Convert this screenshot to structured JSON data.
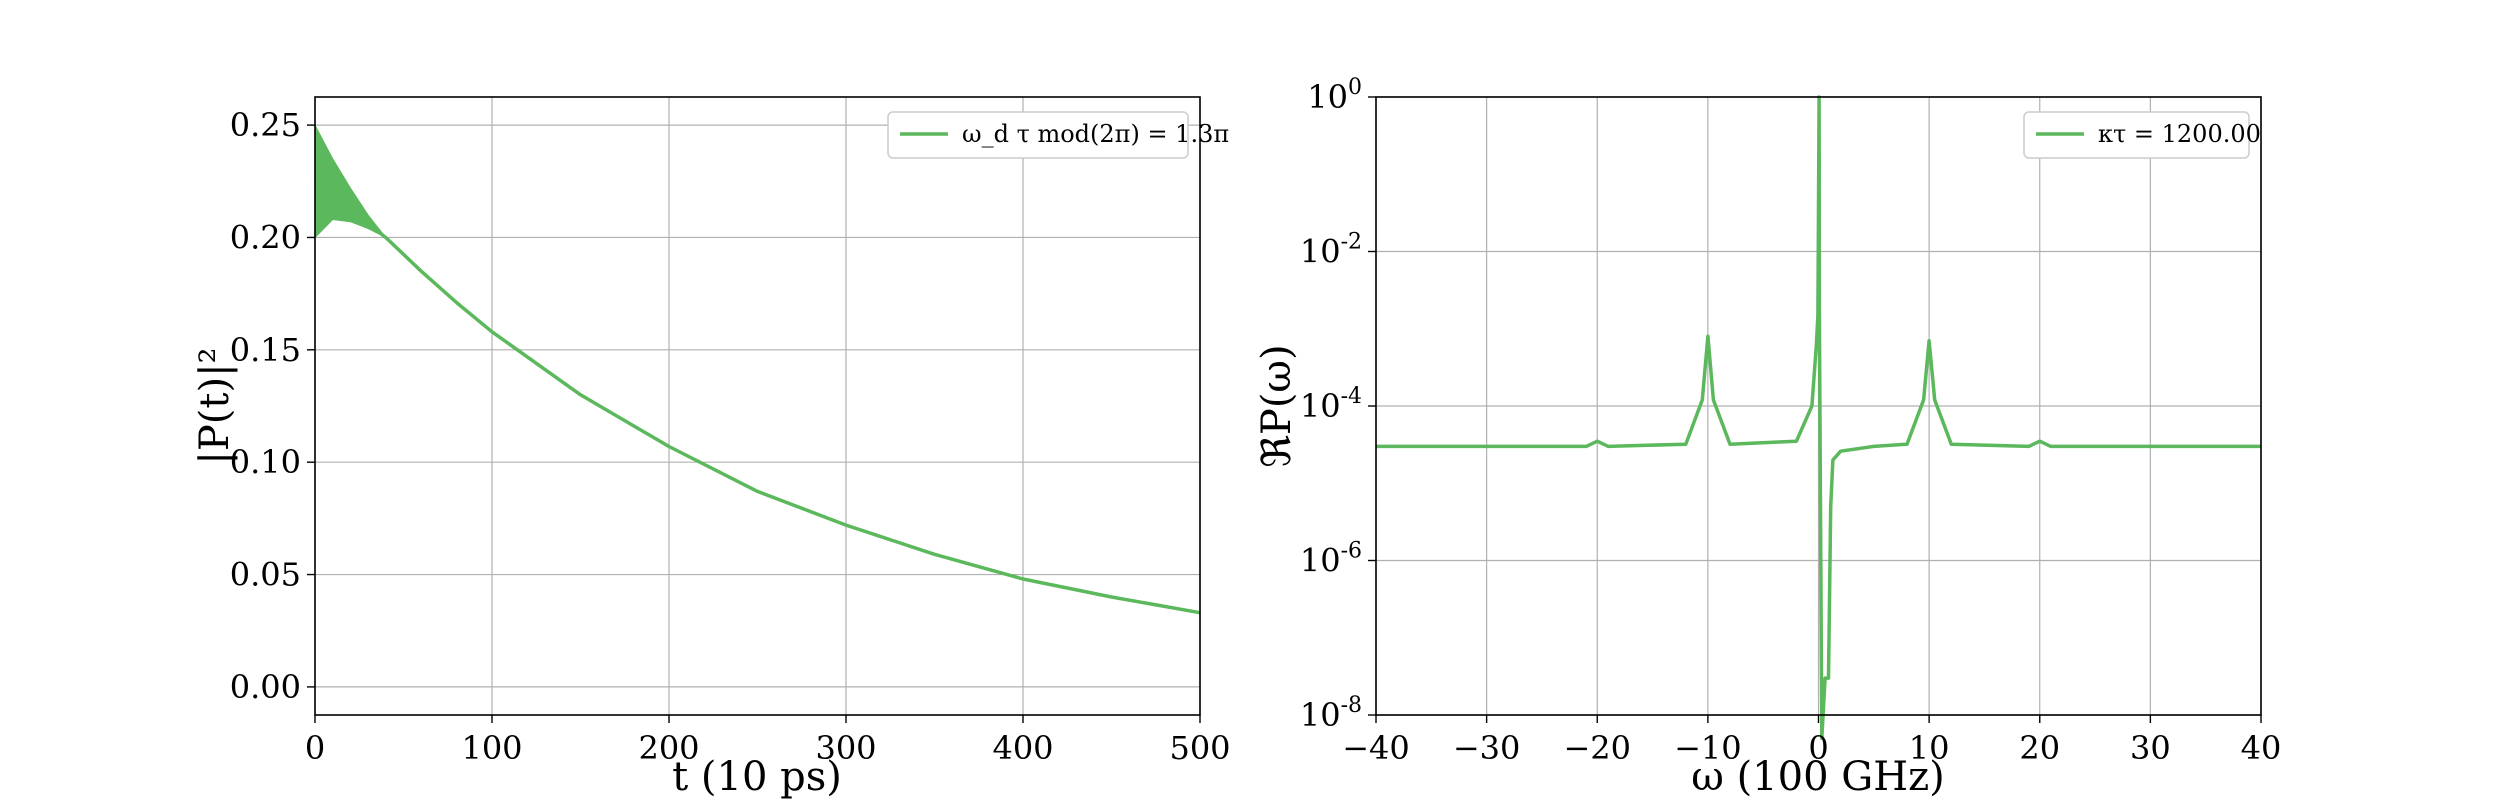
{
  "chart_data": [
    {
      "type": "line",
      "xlabel": "t (10 ps)",
      "ylabel": "|P(t)|²",
      "xlim": [
        0,
        500
      ],
      "ylim": [
        -0.0125,
        0.2625
      ],
      "xticks": [
        0,
        100,
        200,
        300,
        400,
        500
      ],
      "xtick_labels": [
        "0",
        "100",
        "200",
        "300",
        "400",
        "500"
      ],
      "yticks": [
        0.0,
        0.05,
        0.1,
        0.15,
        0.2,
        0.25
      ],
      "ytick_labels": [
        "0.00",
        "0.05",
        "0.10",
        "0.15",
        "0.20",
        "0.25"
      ],
      "grid": true,
      "legend_position": "top-right",
      "series": [
        {
          "name": "ω_d τ mod(2π) = 1.3π",
          "color": "#5cb85c",
          "x": [
            0,
            20,
            40,
            60,
            80,
            100,
            150,
            200,
            250,
            300,
            350,
            400,
            450,
            500
          ],
          "y": [
            0.225,
            0.212,
            0.2,
            0.185,
            0.171,
            0.158,
            0.13,
            0.107,
            0.087,
            0.072,
            0.059,
            0.048,
            0.04,
            0.033
          ],
          "oscillation_envelope": {
            "x": [
              0,
              10,
              20,
              30,
              40
            ],
            "upper": [
              0.25,
              0.235,
              0.222,
              0.21,
              0.2
            ],
            "lower": [
              0.2,
              0.208,
              0.207,
              0.204,
              0.2
            ]
          }
        }
      ]
    },
    {
      "type": "line",
      "xlabel": "ω (100 GHz)",
      "ylabel": "ℜP(ω)",
      "xlim": [
        -40,
        40
      ],
      "ylim_log10": [
        -8,
        0
      ],
      "yscale": "log",
      "xticks": [
        -40,
        -30,
        -20,
        -10,
        0,
        10,
        20,
        30,
        40
      ],
      "xtick_labels": [
        "−40",
        "−30",
        "−20",
        "−10",
        "0",
        "10",
        "20",
        "30",
        "40"
      ],
      "yticks_log10": [
        -8,
        -6,
        -4,
        -2,
        0
      ],
      "ytick_labels": [
        "10-8",
        "10-6",
        "10-4",
        "10-2",
        "100"
      ],
      "grid": true,
      "legend_position": "top-right",
      "series": [
        {
          "name": "κτ = 1200.00",
          "color": "#5cb85c",
          "x": [
            -40,
            -21,
            -20,
            -19,
            -12,
            -10.5,
            -10,
            -9.5,
            -8,
            -2,
            -0.6,
            -0.2,
            -0.05,
            0.05,
            0.08,
            0.3,
            0.6,
            0.9,
            1.1,
            1.3,
            2,
            5,
            8,
            9.5,
            10,
            10.5,
            12,
            19,
            20,
            21,
            40
          ],
          "y": [
            3e-05,
            3e-05,
            3.5e-05,
            3e-05,
            3.2e-05,
            0.00012,
            0.0008,
            0.00012,
            3.2e-05,
            3.5e-05,
            0.0001,
            0.0006,
            0.0015,
            1.0,
            0.0015,
            5e-09,
            3e-08,
            3e-08,
            5e-06,
            2e-05,
            2.6e-05,
            3e-05,
            3.2e-05,
            0.00012,
            0.0007,
            0.00012,
            3.2e-05,
            3e-05,
            3.5e-05,
            3e-05,
            3e-05
          ]
        }
      ]
    }
  ]
}
